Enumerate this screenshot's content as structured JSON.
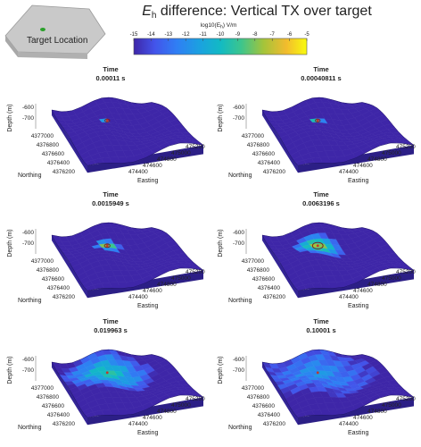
{
  "title_prefix": "E",
  "title_sub": "h",
  "title_rest": " difference: Vertical TX over target",
  "inset_label": "Target Location",
  "colorbar": {
    "label_a": "log10(E",
    "label_b": "h",
    "label_c": ") V/m",
    "ticks": [
      "-15",
      "-14",
      "-13",
      "-12",
      "-11",
      "-10",
      "-9",
      "-8",
      "-7",
      "-6",
      "-5"
    ]
  },
  "chart_data": {
    "type": "heatmap",
    "time_label": "Time",
    "ylabel": "Depth (m)",
    "northing_label": "Northing",
    "easting_label": "Easting",
    "z_ticks": [
      "-600",
      "-700"
    ],
    "northing_ticks": [
      "4377000",
      "4376800",
      "4376600",
      "4376400",
      "4376200"
    ],
    "easting_ticks": [
      "475200",
      "475000",
      "474800",
      "474600",
      "474400"
    ],
    "clim": [
      -15,
      -5
    ],
    "panels": [
      {
        "time": "0.00011 s",
        "spread": 0.05,
        "peak": -5
      },
      {
        "time": "0.00040811 s",
        "spread": 0.07,
        "peak": -5
      },
      {
        "time": "0.0015949 s",
        "spread": 0.16,
        "peak": -6
      },
      {
        "time": "0.0063196 s",
        "spread": 0.3,
        "peak": -6.5
      },
      {
        "time": "0.019963 s",
        "spread": 0.55,
        "peak": -9
      },
      {
        "time": "0.10001 s",
        "spread": 0.7,
        "peak": -11.5
      }
    ]
  }
}
